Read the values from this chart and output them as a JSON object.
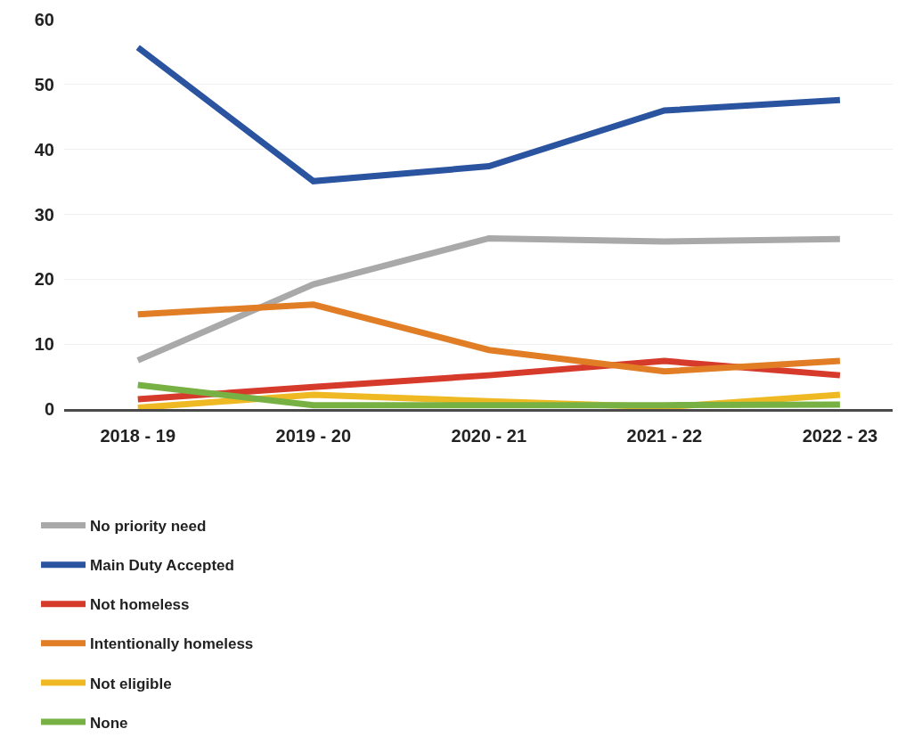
{
  "chart_data": {
    "type": "line",
    "categories": [
      "2018 - 19",
      "2019 - 20",
      "2020 - 21",
      "2021 - 22",
      "2022 - 23"
    ],
    "series": [
      {
        "name": "No priority need",
        "color": "#a9a9a9",
        "values": [
          7.5,
          19.2,
          26.3,
          25.8,
          26.2
        ]
      },
      {
        "name": "Main Duty Accepted",
        "color": "#2b54a0",
        "values": [
          55.7,
          35.1,
          37.4,
          46.0,
          47.6
        ]
      },
      {
        "name": "Not homeless",
        "color": "#d63a2b",
        "values": [
          1.5,
          3.4,
          5.2,
          7.4,
          5.2
        ]
      },
      {
        "name": "Intentionally homeless",
        "color": "#e07d25",
        "values": [
          14.6,
          16.1,
          9.1,
          5.8,
          7.4
        ]
      },
      {
        "name": "Not eligible",
        "color": "#efb924",
        "values": [
          0.2,
          2.2,
          1.2,
          0.3,
          2.2
        ]
      },
      {
        "name": "None",
        "color": "#78b143",
        "values": [
          3.7,
          0.6,
          0.6,
          0.6,
          0.7
        ]
      }
    ],
    "ylim": [
      0,
      60
    ],
    "yticks": [
      0,
      10,
      20,
      30,
      40,
      50,
      60
    ],
    "grid": "y",
    "legend": "bottom",
    "line_style": "solid"
  }
}
